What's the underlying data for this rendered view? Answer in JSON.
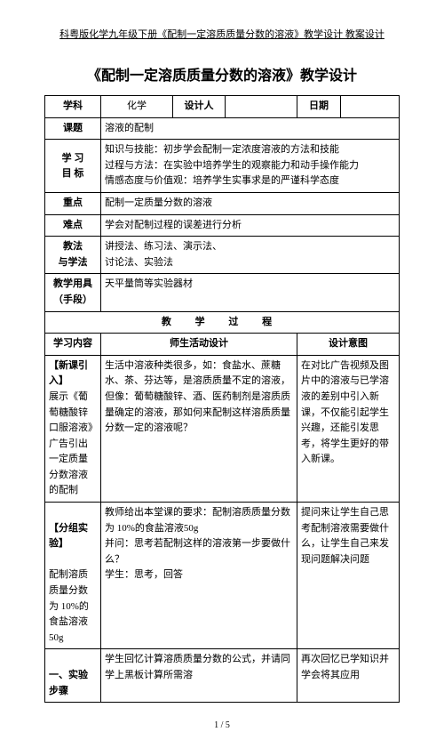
{
  "header": "科粤版化学九年级下册《配制一定溶质质量分数的溶液》教学设计 教案设计",
  "title": "《配制一定溶质质量分数的溶液》教学设计",
  "rows": {
    "subject_label": "学科",
    "subject_value": "化学",
    "designer_label": "设计人",
    "designer_value": "",
    "date_label": "日期",
    "date_value": "",
    "topic_label": "课题",
    "topic_value": "溶液的配制",
    "goals_label": "学 习\n目 标",
    "goals_value": "知识与技能：初步学会配制一定浓度溶液的方法和技能\n过程与方法：在实验中培养学生的观察能力和动手操作能力\n情感态度与价值观：培养学生实事求是的严谨科学态度",
    "keypoint_label": "重点",
    "keypoint_value": "配制一定质量分数的溶液",
    "difficulty_label": "难点",
    "difficulty_value": "学会对配制过程的误差进行分析",
    "method_label": "教法\n与学法",
    "method_value": "讲授法、练习法、演示法、\n讨论法、实验法",
    "tools_label": "教学用具\n（手段）",
    "tools_value": "天平量筒等实验器材",
    "process_header": "教 学 过 程",
    "col1": "学习内容",
    "col2": "师生活动设计",
    "col3": "设计意图",
    "intro_label": "【新课引入】",
    "intro_content": "展示《葡萄糖酸锌口服溶液》广告引出一定质量分数溶液的配制",
    "intro_activity": "生活中溶液种类很多，如：食盐水、蔗糖水、茶、芬达等，是溶质质量不定的溶液，但像：葡萄糖酸锌、酒、医药制剂是溶质质量确定的溶液，那如何来配制这样溶质质量分数一定的溶液呢？",
    "intro_intent": "在对比广告视频及图片中的溶液与已学溶液的差别中引入新课，不仅能引起学生兴趣，还能引发思考，将学生更好的带入新课。",
    "group_label": "【分组实验】",
    "group_content": "配制溶质质量分数为 10%的食盐溶液50g",
    "group_activity": "教师给出本堂课的要求：配制溶质质量分数为 10%的食盐溶液50g\n并问：思考若配制这样的溶液第一步要做什么？\n学生：思考，回答",
    "group_intent": "提问来让学生自己思考配制溶液需要做什么，让学生自己来发现问题解决问题",
    "steps_label": "一、实验步骤",
    "steps_activity": "学生回忆计算溶质质量分数的公式，并请同学上黑板计算所需溶",
    "steps_intent": "再次回忆已学知识并学会将其应用"
  },
  "footer": "1 / 5"
}
